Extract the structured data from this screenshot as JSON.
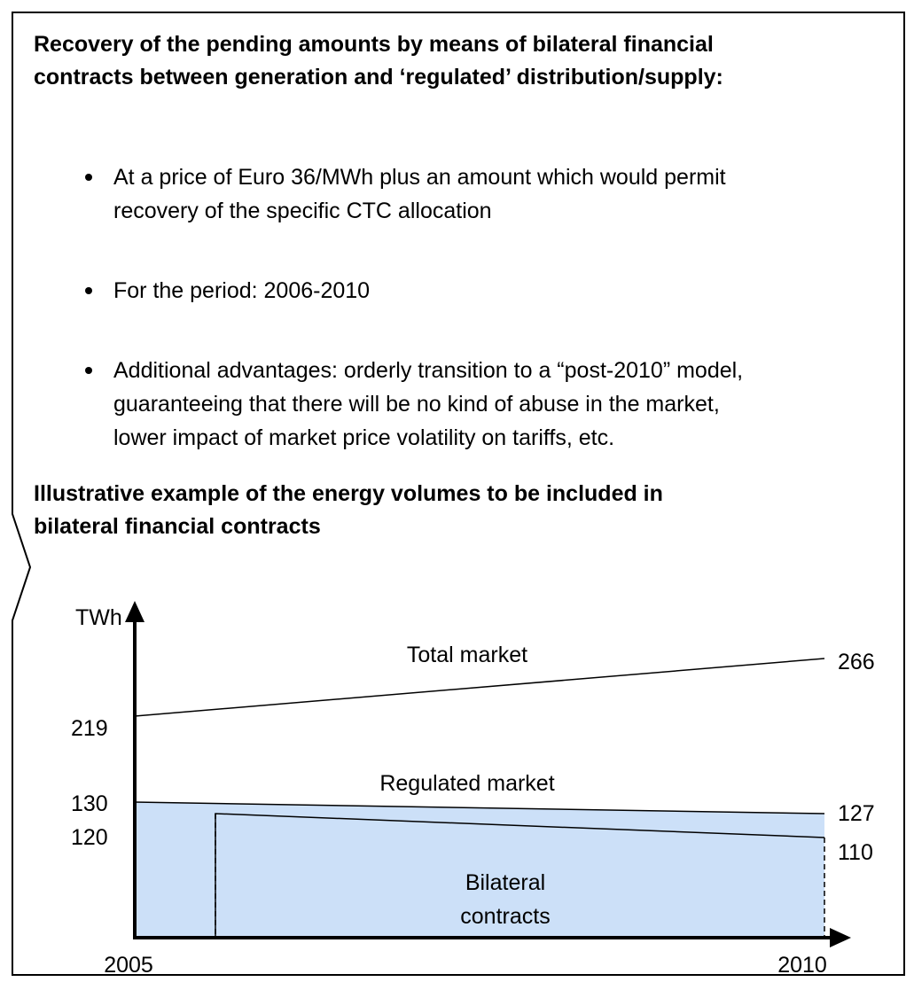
{
  "heading": [
    "Recovery of the pending amounts by means of bilateral financial",
    "contracts between generation and ‘regulated’ distribution/supply:"
  ],
  "bullets": [
    [
      "At a price of Euro 36/MWh plus an amount which would permit",
      "recovery of the specific CTC allocation"
    ],
    [
      "For the period: 2006-2010"
    ],
    [
      "Additional advantages: orderly transition to a “post-2010” model,",
      "guaranteeing that there will be no kind of abuse in the market,",
      "lower impact of market price volatility on tariffs, etc."
    ]
  ],
  "example_heading": [
    "Illustrative example of the energy volumes to be included in",
    "bilateral financial contracts"
  ],
  "diagram": {
    "y_axis_label": "TWh",
    "x_start": "2005",
    "x_end": "2010",
    "total_market": {
      "label": "Total market",
      "start": "219",
      "end": "266"
    },
    "regulated_market": {
      "label": "Regulated market",
      "start": "130",
      "end": "127"
    },
    "bilateral_contracts": {
      "label": [
        "Bilateral",
        "contracts"
      ],
      "start": "120",
      "end": "110"
    }
  }
}
